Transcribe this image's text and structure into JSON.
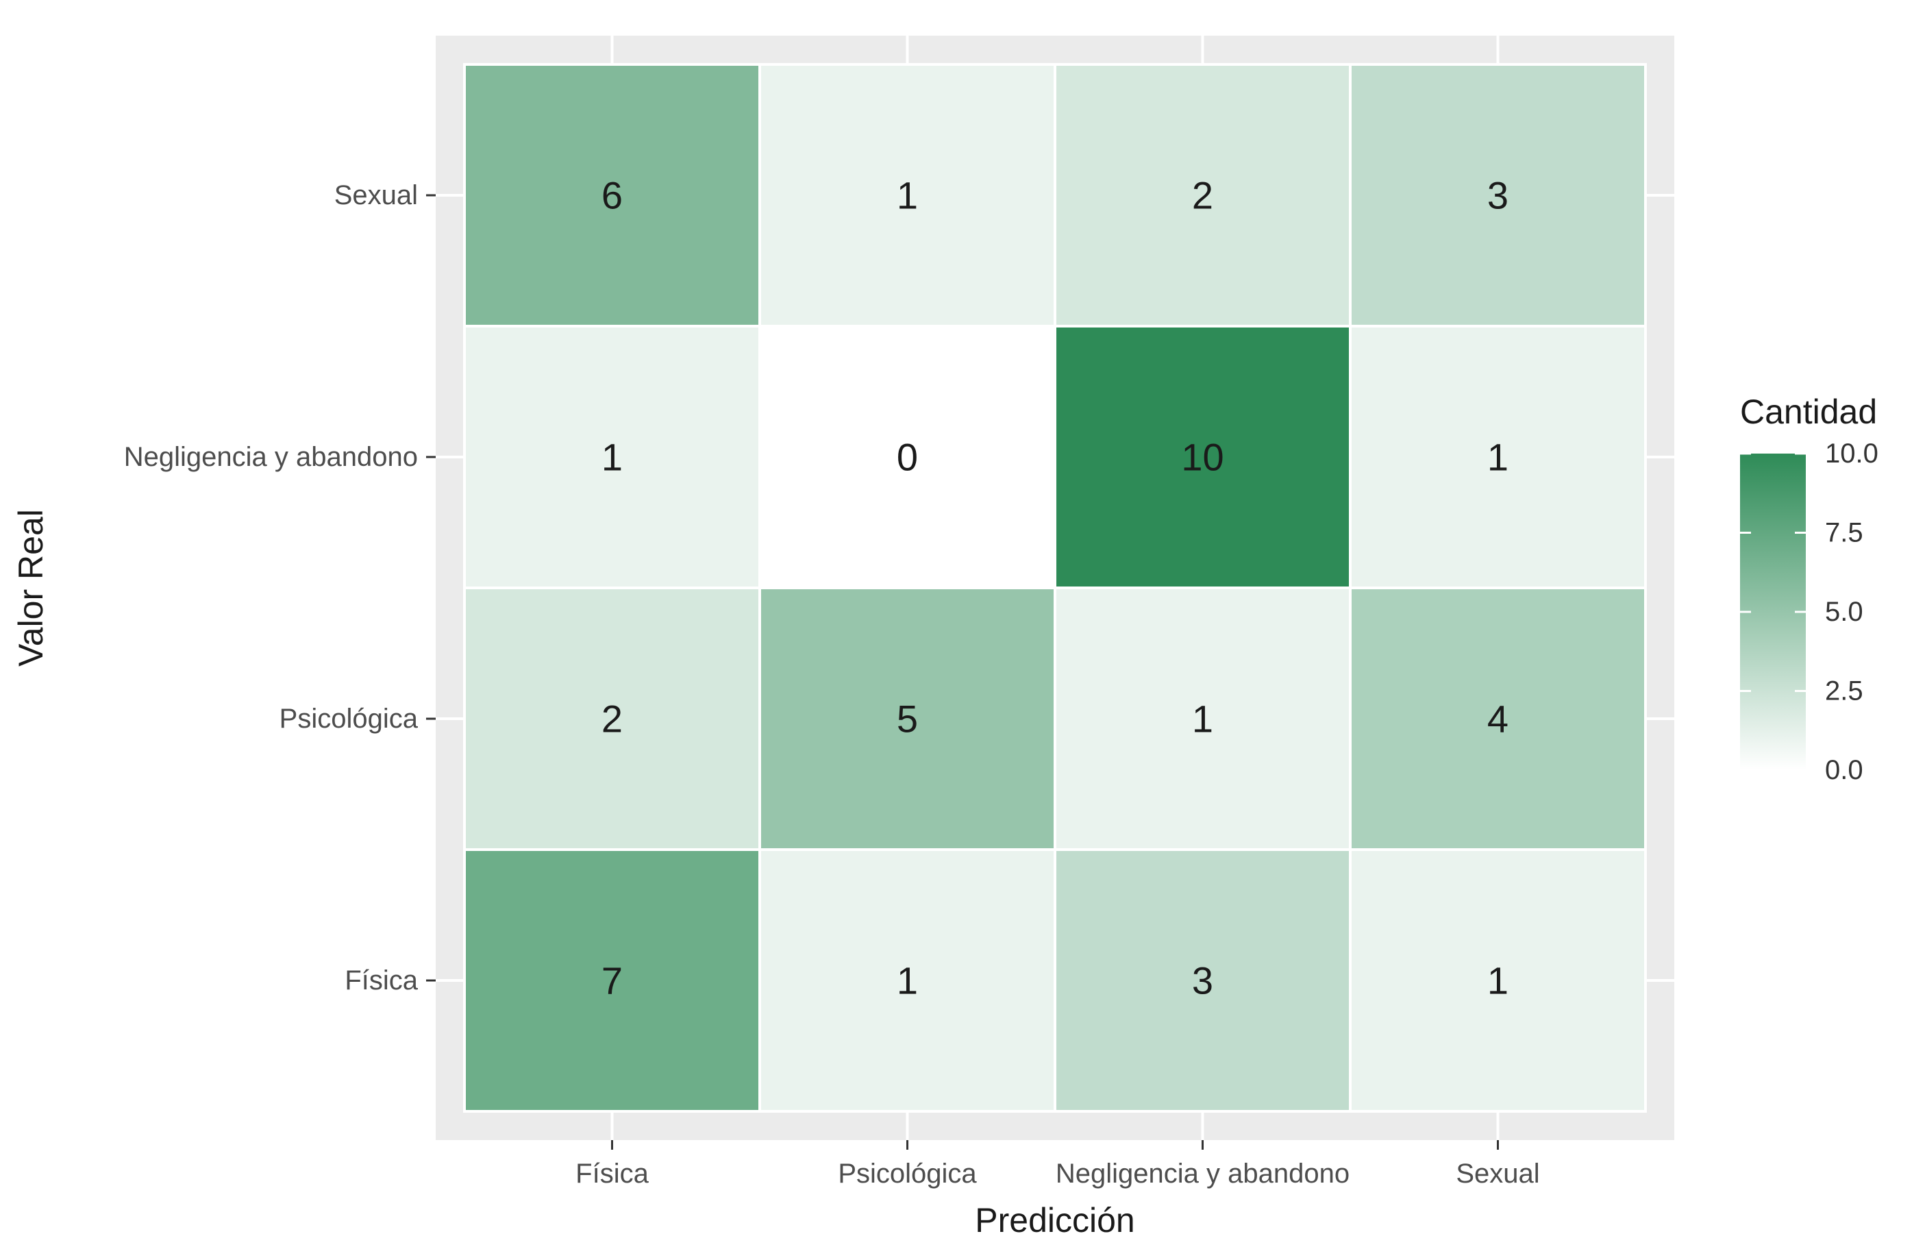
{
  "chart_data": {
    "type": "heatmap",
    "xlabel": "Predicción",
    "ylabel": "Valor Real",
    "x_categories": [
      "Física",
      "Psicológica",
      "Negligencia y abandono",
      "Sexual"
    ],
    "y_categories": [
      "Sexual",
      "Negligencia y abandono",
      "Psicológica",
      "Física"
    ],
    "values": [
      [
        6,
        1,
        2,
        3
      ],
      [
        1,
        0,
        10,
        1
      ],
      [
        2,
        5,
        1,
        4
      ],
      [
        7,
        1,
        3,
        1
      ]
    ],
    "legend": {
      "title": "Cantidad",
      "ticks": [
        "10.0",
        "7.5",
        "5.0",
        "2.5",
        "0.0"
      ],
      "range": [
        0,
        10
      ],
      "placement": "right"
    },
    "colors": {
      "low": "#ffffff",
      "high": "#2e8b57",
      "panel": "#ebebeb",
      "grid": "#ffffff"
    }
  }
}
